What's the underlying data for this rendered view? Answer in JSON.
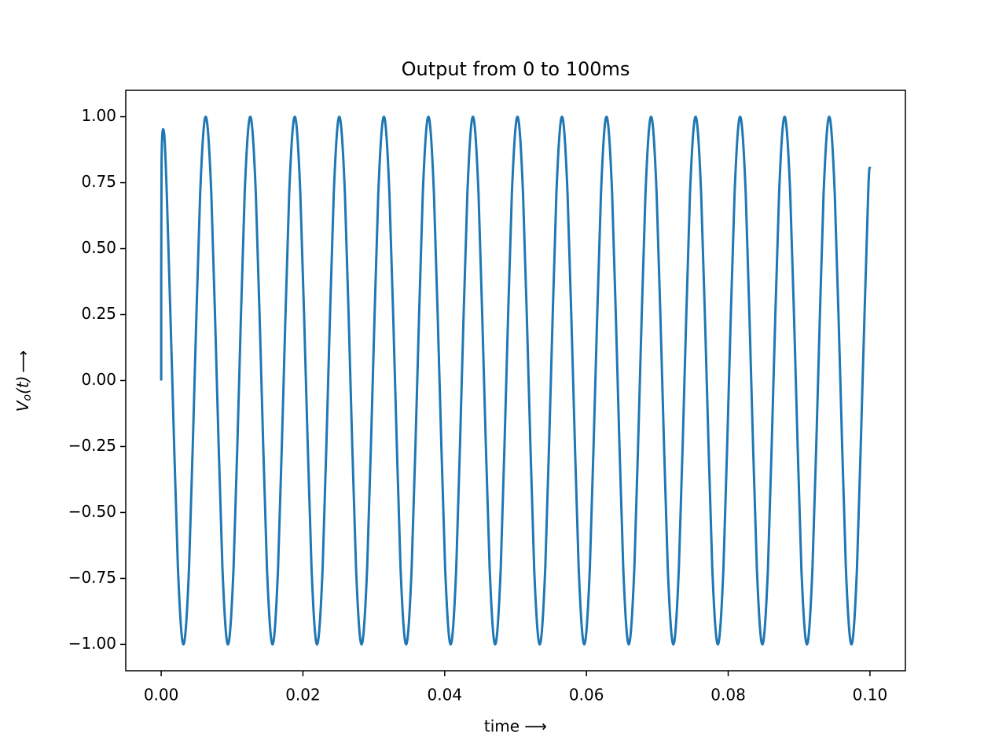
{
  "chart_data": {
    "type": "line",
    "title": "Output from 0 to 100ms",
    "xlabel": "time ⟶",
    "ylabel": {
      "main": "V",
      "sub": "o",
      "rest": "(t)",
      "arrow": "⟶"
    },
    "color": "#1f77b4",
    "xlim": [
      -0.005,
      0.105
    ],
    "ylim": [
      -1.1,
      1.1
    ],
    "xticks": [
      {
        "value": 0,
        "label": "0.00"
      },
      {
        "value": 0.02,
        "label": "0.02"
      },
      {
        "value": 0.04,
        "label": "0.04"
      },
      {
        "value": 0.06,
        "label": "0.06"
      },
      {
        "value": 0.08,
        "label": "0.08"
      },
      {
        "value": 0.1,
        "label": "0.10"
      }
    ],
    "yticks": [
      {
        "value": 1,
        "label": "1.00"
      },
      {
        "value": 0.75,
        "label": "0.75"
      },
      {
        "value": 0.5,
        "label": "0.50"
      },
      {
        "value": 0.25,
        "label": "0.25"
      },
      {
        "value": 0,
        "label": "0.00"
      },
      {
        "value": -0.25,
        "label": "−0.25"
      },
      {
        "value": -0.5,
        "label": "−0.50"
      },
      {
        "value": -0.75,
        "label": "−0.75"
      },
      {
        "value": -1,
        "label": "−1.00"
      }
    ],
    "x": [
      0,
      5e-05,
      0.0004,
      0.0008,
      0.00157,
      0.00236,
      0.00314,
      0.00393,
      0.00471,
      0.0055,
      0.00628,
      0.00707,
      0.00785,
      0.00864,
      0.00942,
      0.01021,
      0.011,
      0.01178,
      0.01257,
      0.01335,
      0.01414,
      0.01492,
      0.01571,
      0.01649,
      0.01728,
      0.01806,
      0.01885,
      0.01963,
      0.02042,
      0.02121,
      0.02199,
      0.02278,
      0.02356,
      0.02435,
      0.02513,
      0.02592,
      0.0267,
      0.02749,
      0.02827,
      0.02906,
      0.02985,
      0.03063,
      0.03142,
      0.0322,
      0.03299,
      0.03377,
      0.03456,
      0.03534,
      0.03613,
      0.03691,
      0.0377,
      0.03848,
      0.03927,
      0.04006,
      0.04084,
      0.04163,
      0.04241,
      0.0432,
      0.04398,
      0.04477,
      0.04555,
      0.04634,
      0.04712,
      0.04791,
      0.04869,
      0.04948,
      0.05027,
      0.05105,
      0.05184,
      0.05262,
      0.05341,
      0.05419,
      0.05498,
      0.05576,
      0.05655,
      0.05733,
      0.05812,
      0.0589,
      0.05969,
      0.06048,
      0.06126,
      0.06205,
      0.06283,
      0.06362,
      0.0644,
      0.06519,
      0.06597,
      0.06676,
      0.06754,
      0.06833,
      0.06912,
      0.0699,
      0.07069,
      0.07147,
      0.07226,
      0.07304,
      0.07383,
      0.07461,
      0.0754,
      0.07618,
      0.07697,
      0.07775,
      0.07854,
      0.07933,
      0.08011,
      0.0809,
      0.08168,
      0.08247,
      0.08325,
      0.08404,
      0.08482,
      0.08561,
      0.08639,
      0.08718,
      0.08796,
      0.08875,
      0.08954,
      0.09032,
      0.09111,
      0.09189,
      0.09268,
      0.09346,
      0.09425,
      0.09503,
      0.09582,
      0.0966,
      0.09739,
      0.09817,
      0.09896,
      0.09975,
      0.1
    ],
    "values": [
      0,
      0.82,
      0.94,
      0.7,
      0,
      -0.71,
      -1,
      -0.71,
      0,
      0.71,
      1,
      0.71,
      0,
      -0.71,
      -1,
      -0.71,
      0,
      0.71,
      1,
      0.71,
      0,
      -0.71,
      -1,
      -0.71,
      0,
      0.71,
      1,
      0.71,
      0,
      -0.71,
      -1,
      -0.71,
      0,
      0.71,
      1,
      0.71,
      0,
      -0.71,
      -1,
      -0.71,
      0,
      0.71,
      1,
      0.71,
      0,
      -0.71,
      -1,
      -0.71,
      0,
      0.71,
      1,
      0.71,
      0,
      -0.71,
      -1,
      -0.71,
      0,
      0.71,
      1,
      0.71,
      0,
      -0.71,
      -1,
      -0.71,
      0,
      0.71,
      1,
      0.71,
      0,
      -0.71,
      -1,
      -0.71,
      0,
      0.71,
      1,
      0.71,
      0,
      -0.71,
      -1,
      -0.71,
      0,
      0.71,
      1,
      0.71,
      0,
      -0.71,
      -1,
      -0.71,
      0,
      0.71,
      1,
      0.71,
      0,
      -0.71,
      -1,
      -0.71,
      0,
      0.71,
      1,
      0.71,
      0,
      -0.71,
      -1,
      -0.71,
      0,
      0.71,
      1,
      0.71,
      0,
      -0.71,
      -1,
      -0.71,
      0,
      0.71,
      1,
      0.71,
      0,
      -0.71,
      -1,
      -0.71,
      0,
      0.71,
      1,
      0.71,
      0,
      -0.71,
      -1,
      -0.71,
      0,
      0.71,
      0.81
    ]
  }
}
